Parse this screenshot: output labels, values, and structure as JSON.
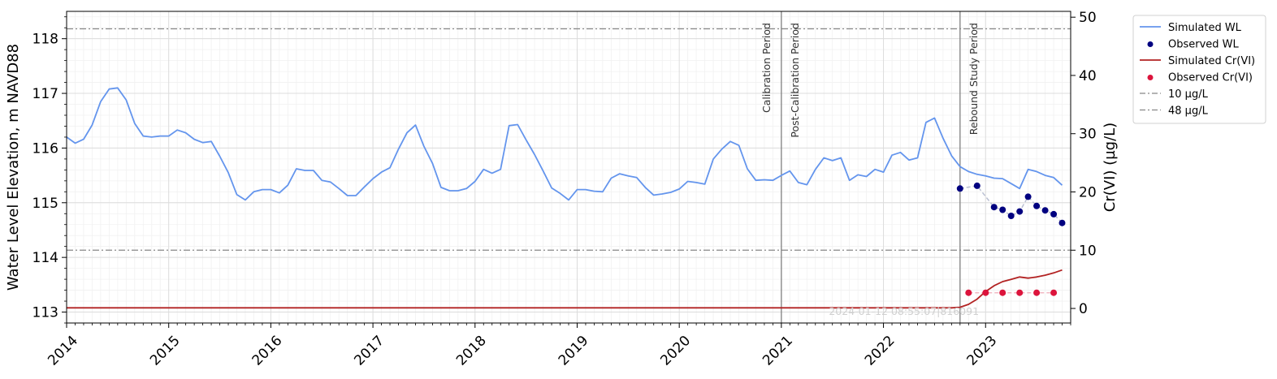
{
  "chart_data": {
    "type": "line",
    "x_range": [
      "2014-01-01",
      "2023-11-01"
    ],
    "x_ticks": [
      "2014",
      "2015",
      "2016",
      "2017",
      "2018",
      "2019",
      "2020",
      "2021",
      "2022",
      "2023"
    ],
    "y_left": {
      "label": "Water Level Elevation, m NAVD88",
      "range": [
        112.8,
        118.5
      ],
      "ticks": [
        "113",
        "114",
        "115",
        "116",
        "117",
        "118"
      ]
    },
    "y_right": {
      "label": "Cr(VI) (µg/L)",
      "range": [
        -2.5,
        51
      ],
      "ticks": [
        "0",
        "10",
        "20",
        "30",
        "40",
        "50"
      ]
    },
    "grid": true,
    "legend_position": "outside-right",
    "timestamp": "2024-01-12 08:55:07|816091",
    "periods": [
      {
        "label": "Calibration Period",
        "date": "2021-01-01",
        "side": "left"
      },
      {
        "label": "Post-Calibration Period",
        "date": "2021-01-01",
        "side": "right"
      },
      {
        "label": "Rebound Study Period",
        "date": "2022-10-01",
        "side": "right"
      }
    ],
    "thresholds": [
      {
        "name": "10 µg/L",
        "value": 10,
        "color": "#888888"
      },
      {
        "name": "48 µg/L",
        "value": 48,
        "color": "#888888"
      }
    ],
    "series": [
      {
        "name": "Simulated WL",
        "kind": "line",
        "axis": "left",
        "color": "#6495ED",
        "start": "2014-01",
        "step": "month",
        "values": [
          116.2,
          116.09,
          116.16,
          116.42,
          116.85,
          117.08,
          117.1,
          116.88,
          116.45,
          116.22,
          116.2,
          116.22,
          116.22,
          116.33,
          116.28,
          116.16,
          116.1,
          116.12,
          115.85,
          115.55,
          115.15,
          115.05,
          115.2,
          115.24,
          115.24,
          115.18,
          115.32,
          115.62,
          115.59,
          115.59,
          115.41,
          115.38,
          115.26,
          115.13,
          115.13,
          115.29,
          115.44,
          115.56,
          115.64,
          115.98,
          116.28,
          116.42,
          116.03,
          115.72,
          115.28,
          115.22,
          115.22,
          115.26,
          115.39,
          115.61,
          115.54,
          115.61,
          116.41,
          116.43,
          116.15,
          115.88,
          115.58,
          115.27,
          115.17,
          115.05,
          115.24,
          115.24,
          115.21,
          115.2,
          115.45,
          115.53,
          115.49,
          115.46,
          115.28,
          115.14,
          115.16,
          115.19,
          115.25,
          115.39,
          115.37,
          115.34,
          115.8,
          115.98,
          116.12,
          116.05,
          115.62,
          115.41,
          115.42,
          115.41,
          115.5,
          115.58,
          115.37,
          115.33,
          115.61,
          115.82,
          115.77,
          115.82,
          115.41,
          115.51,
          115.48,
          115.61,
          115.56,
          115.87,
          115.92,
          115.78,
          115.82,
          116.47,
          116.55,
          116.18,
          115.86,
          115.66,
          115.57,
          115.52,
          115.49,
          115.45,
          115.44,
          115.35,
          115.26,
          115.61,
          115.57,
          115.5,
          115.46,
          115.32
        ]
      },
      {
        "name": "Observed WL",
        "kind": "scatter",
        "axis": "left",
        "color": "#000080",
        "x": [
          "2022-10",
          "2022-12",
          "2023-02",
          "2023-03",
          "2023-04",
          "2023-05",
          "2023-06",
          "2023-07",
          "2023-08",
          "2023-09",
          "2023-10"
        ],
        "values": [
          115.26,
          115.31,
          114.92,
          114.87,
          114.76,
          114.84,
          115.11,
          114.94,
          114.86,
          114.79,
          114.63
        ]
      },
      {
        "name": "Simulated Cr(VI)",
        "kind": "line",
        "axis": "right",
        "color": "#B22222",
        "x": [
          "2014-01",
          "2017-10",
          "2022-09",
          "2022-10",
          "2022-11",
          "2022-12",
          "2023-01",
          "2023-02",
          "2023-03",
          "2023-04",
          "2023-05",
          "2023-06",
          "2023-07",
          "2023-08",
          "2023-09",
          "2023-10"
        ],
        "values": [
          0.1,
          0.1,
          0.1,
          0.2,
          0.7,
          1.6,
          2.9,
          3.9,
          4.6,
          5.0,
          5.4,
          5.2,
          5.4,
          5.7,
          6.1,
          6.6
        ]
      },
      {
        "name": "Observed Cr(VI)",
        "kind": "scatter",
        "axis": "right",
        "color": "#DC143C",
        "x": [
          "2022-11",
          "2023-01",
          "2023-03",
          "2023-05",
          "2023-07",
          "2023-09"
        ],
        "values": [
          2.7,
          2.7,
          2.7,
          2.7,
          2.7,
          2.7
        ]
      }
    ]
  }
}
